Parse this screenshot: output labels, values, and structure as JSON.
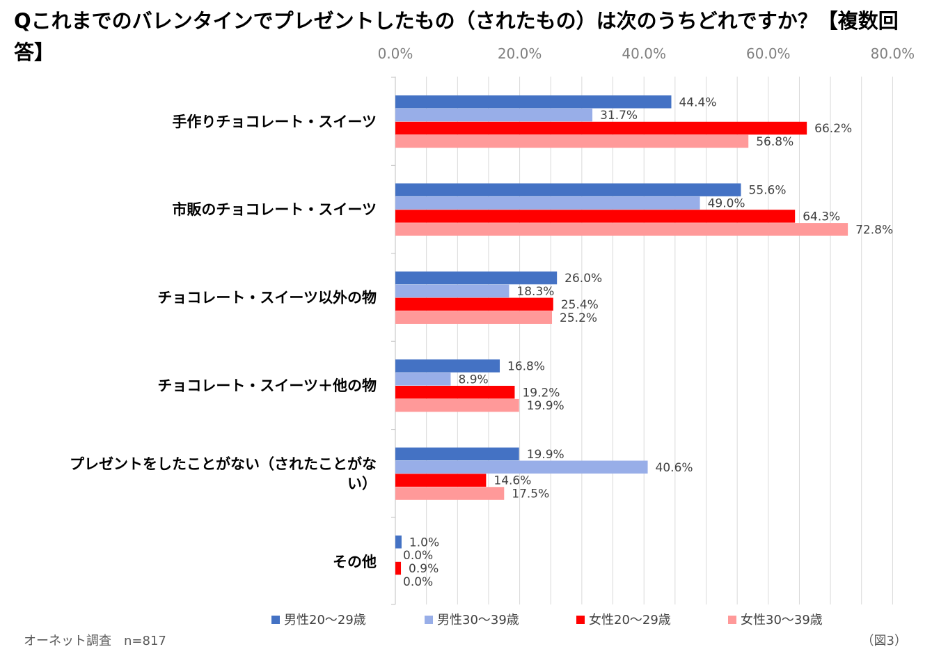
{
  "chart_data": {
    "type": "bar",
    "orientation": "horizontal",
    "title": "Qこれまでのバレンタインでプレゼントしたもの（されたもの）は次のうちどれですか？【複数回答】",
    "categories": [
      "手作りチョコレート・スイーツ",
      "市販のチョコレート・スイーツ",
      "チョコレート・スイーツ以外の物",
      "チョコレート・スイーツ＋他の物",
      "プレゼントをしたことがない（されたことがない）",
      "その他"
    ],
    "category_lines": [
      [
        "手作りチョコレート・スイーツ"
      ],
      [
        "市販のチョコレート・スイーツ"
      ],
      [
        "チョコレート・スイーツ以外の物"
      ],
      [
        "チョコレート・スイーツ＋他の物"
      ],
      [
        "プレゼントをしたことがない（されたことがな",
        "い）"
      ],
      [
        "その他"
      ]
    ],
    "series": [
      {
        "name": "男性20～29歳",
        "color": "#4472c4",
        "values": [
          44.4,
          55.6,
          26.0,
          16.8,
          19.9,
          1.0
        ]
      },
      {
        "name": "男性30～39歳",
        "color": "#98aee8",
        "values": [
          31.7,
          49.0,
          18.3,
          8.9,
          40.6,
          0.0
        ]
      },
      {
        "name": "女性20～29歳",
        "color": "#ff0000",
        "values": [
          66.2,
          64.3,
          25.4,
          19.2,
          14.6,
          0.9
        ]
      },
      {
        "name": "女性30～39歳",
        "color": "#ff9999",
        "values": [
          56.8,
          72.8,
          25.2,
          19.9,
          17.5,
          0.0
        ]
      }
    ],
    "xlim": [
      0,
      80
    ],
    "xticks": [
      "0.0%",
      "20.0%",
      "40.0%",
      "60.0%",
      "80.0%"
    ],
    "xtick_values": [
      0,
      20,
      40,
      60,
      80
    ],
    "value_suffix": "%",
    "grid": true,
    "legend_position": "bottom"
  },
  "footer": {
    "source": "オーネット調査　n=817",
    "figure_label": "（図3）"
  }
}
